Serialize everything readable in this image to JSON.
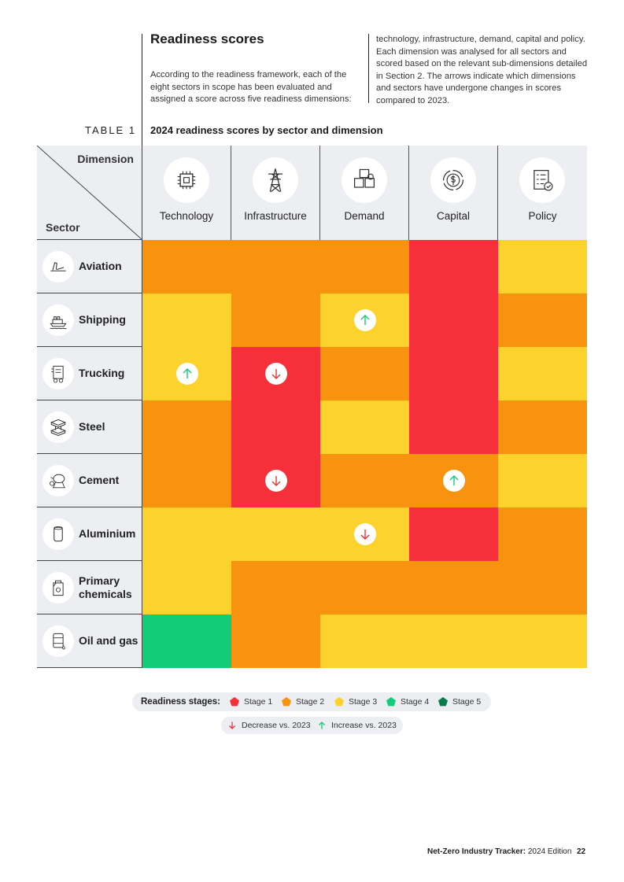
{
  "header": {
    "title": "Readiness scores",
    "intro_left": "According to the readiness framework, each of the eight sectors in scope has been evaluated and assigned a score across five readiness dimensions:",
    "intro_right": "technology, infrastructure, demand, capital and policy. Each dimension was analysed for all sectors and scored based on the relevant sub-dimensions detailed in Section 2. The arrows indicate which dimensions and sectors have undergone changes in scores compared to 2023."
  },
  "table": {
    "label": "TABLE 1",
    "title": "2024 readiness scores by sector and dimension",
    "corner_dimension": "Dimension",
    "corner_sector": "Sector",
    "dimensions": [
      {
        "label": "Technology",
        "icon": "chip-gear-icon"
      },
      {
        "label": "Infrastructure",
        "icon": "power-tower-icon"
      },
      {
        "label": "Demand",
        "icon": "boxes-icon"
      },
      {
        "label": "Capital",
        "icon": "dollar-cycle-icon"
      },
      {
        "label": "Policy",
        "icon": "checklist-icon"
      }
    ],
    "sectors": [
      {
        "label": "Aviation",
        "icon": "plane-icon",
        "stages": [
          2,
          2,
          2,
          1,
          3
        ],
        "changes": [
          "",
          "",
          "",
          "",
          ""
        ]
      },
      {
        "label": "Shipping",
        "icon": "ship-icon",
        "stages": [
          3,
          2,
          3,
          1,
          2
        ],
        "changes": [
          "",
          "",
          "up",
          "",
          ""
        ]
      },
      {
        "label": "Trucking",
        "icon": "truck-icon",
        "stages": [
          3,
          1,
          2,
          1,
          3
        ],
        "changes": [
          "up",
          "down",
          "",
          "",
          ""
        ]
      },
      {
        "label": "Steel",
        "icon": "steel-beam-icon",
        "stages": [
          2,
          1,
          3,
          1,
          2
        ],
        "changes": [
          "",
          "",
          "",
          "",
          ""
        ]
      },
      {
        "label": "Cement",
        "icon": "cement-mixer-icon",
        "stages": [
          2,
          1,
          2,
          2,
          3
        ],
        "changes": [
          "",
          "down",
          "",
          "up",
          ""
        ]
      },
      {
        "label": "Aluminium",
        "icon": "can-icon",
        "stages": [
          3,
          3,
          3,
          1,
          2
        ],
        "changes": [
          "",
          "",
          "down",
          "",
          ""
        ]
      },
      {
        "label": "Primary\nchemicals",
        "icon": "chemical-canister-icon",
        "stages": [
          3,
          2,
          2,
          2,
          2
        ],
        "changes": [
          "",
          "",
          "",
          "",
          ""
        ]
      },
      {
        "label": "Oil and gas",
        "icon": "oil-barrel-icon",
        "stages": [
          4,
          2,
          3,
          3,
          3
        ],
        "changes": [
          "",
          "",
          "",
          "",
          ""
        ]
      }
    ]
  },
  "legend": {
    "title": "Readiness stages:",
    "stages": [
      {
        "label": "Stage 1",
        "color": "#f5303a"
      },
      {
        "label": "Stage 2",
        "color": "#f7930f"
      },
      {
        "label": "Stage 3",
        "color": "#fcd22d"
      },
      {
        "label": "Stage 4",
        "color": "#12cc78"
      },
      {
        "label": "Stage 5",
        "color": "#0a7a4b"
      }
    ],
    "decrease": "Decrease vs. 2023",
    "increase": "Increase vs. 2023",
    "decrease_color": "#f5303a",
    "increase_color": "#12cc78"
  },
  "footer": {
    "publication": "Net-Zero Industry Tracker:",
    "edition": "2024 Edition",
    "page": "22"
  }
}
